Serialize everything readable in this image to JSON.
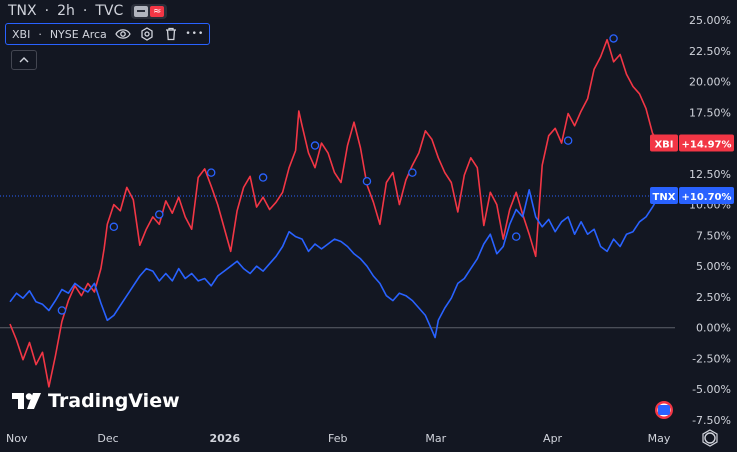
{
  "header": {
    "symbol": "TNX",
    "sep1": "·",
    "interval": "2h",
    "sep2": "·",
    "exchange": "TVC"
  },
  "compare_legend": {
    "symbol": "XBI",
    "sep": "·",
    "exchange": "NYSE Arca",
    "icons": [
      "eye-icon",
      "settings-icon",
      "trash-icon",
      "more-icon"
    ],
    "more_label": "•••"
  },
  "logo_text": "TradingView",
  "colors": {
    "background": "#131722",
    "xbi": "#f23645",
    "tnx": "#2962ff",
    "marker": "#2962ff"
  },
  "chart_data": {
    "type": "line",
    "yunit": "%",
    "ylim": [
      -7.5,
      25
    ],
    "yticks": [
      "25.00%",
      "22.50%",
      "20.00%",
      "17.50%",
      "12.50%",
      "10.00%",
      "7.50%",
      "5.00%",
      "2.50%",
      "0.00%",
      "-2.50%",
      "-5.00%",
      "-7.50%"
    ],
    "x_labels": [
      "Nov",
      "Dec",
      "2026",
      "Feb",
      "Mar",
      "Apr",
      "May"
    ],
    "x_label_pos": [
      0,
      0.151,
      0.331,
      0.505,
      0.656,
      0.836,
      1.0
    ],
    "zero_line": 0,
    "series": [
      {
        "name": "XBI",
        "color": "#f23645",
        "last_label": "+14.97%",
        "last_value": 14.97,
        "points": [
          [
            0,
            0.3
          ],
          [
            0.01,
            -1.0
          ],
          [
            0.02,
            -2.6
          ],
          [
            0.03,
            -1.2
          ],
          [
            0.04,
            -3.0
          ],
          [
            0.05,
            -2.0
          ],
          [
            0.06,
            -4.8
          ],
          [
            0.07,
            -2.3
          ],
          [
            0.08,
            0.5
          ],
          [
            0.09,
            2.2
          ],
          [
            0.1,
            3.4
          ],
          [
            0.11,
            2.6
          ],
          [
            0.12,
            3.6
          ],
          [
            0.13,
            2.9
          ],
          [
            0.14,
            4.8
          ],
          [
            0.145,
            6.4
          ],
          [
            0.15,
            8.4
          ],
          [
            0.16,
            10.0
          ],
          [
            0.17,
            9.5
          ],
          [
            0.18,
            11.4
          ],
          [
            0.19,
            10.4
          ],
          [
            0.2,
            6.7
          ],
          [
            0.21,
            8.0
          ],
          [
            0.22,
            9.0
          ],
          [
            0.23,
            8.4
          ],
          [
            0.24,
            10.3
          ],
          [
            0.25,
            9.3
          ],
          [
            0.26,
            10.6
          ],
          [
            0.27,
            9.0
          ],
          [
            0.28,
            8.0
          ],
          [
            0.29,
            12.2
          ],
          [
            0.3,
            12.9
          ],
          [
            0.31,
            11.5
          ],
          [
            0.32,
            10.0
          ],
          [
            0.33,
            8.1
          ],
          [
            0.34,
            6.2
          ],
          [
            0.35,
            9.5
          ],
          [
            0.36,
            11.4
          ],
          [
            0.37,
            12.3
          ],
          [
            0.38,
            9.8
          ],
          [
            0.39,
            10.6
          ],
          [
            0.4,
            9.6
          ],
          [
            0.41,
            10.2
          ],
          [
            0.42,
            11.0
          ],
          [
            0.43,
            13.0
          ],
          [
            0.44,
            14.4
          ],
          [
            0.445,
            17.6
          ],
          [
            0.45,
            16.4
          ],
          [
            0.46,
            14.2
          ],
          [
            0.47,
            13.0
          ],
          [
            0.48,
            15.0
          ],
          [
            0.49,
            14.2
          ],
          [
            0.5,
            12.6
          ],
          [
            0.51,
            11.8
          ],
          [
            0.52,
            14.8
          ],
          [
            0.53,
            16.7
          ],
          [
            0.54,
            14.6
          ],
          [
            0.55,
            11.6
          ],
          [
            0.56,
            10.2
          ],
          [
            0.57,
            8.4
          ],
          [
            0.58,
            11.8
          ],
          [
            0.59,
            12.6
          ],
          [
            0.6,
            10.0
          ],
          [
            0.61,
            12.0
          ],
          [
            0.62,
            13.2
          ],
          [
            0.63,
            14.2
          ],
          [
            0.64,
            16.0
          ],
          [
            0.65,
            15.3
          ],
          [
            0.66,
            13.8
          ],
          [
            0.67,
            12.6
          ],
          [
            0.68,
            11.8
          ],
          [
            0.69,
            9.4
          ],
          [
            0.7,
            12.4
          ],
          [
            0.71,
            13.8
          ],
          [
            0.72,
            13.0
          ],
          [
            0.73,
            8.3
          ],
          [
            0.74,
            11.0
          ],
          [
            0.75,
            10.0
          ],
          [
            0.76,
            7.2
          ],
          [
            0.77,
            9.6
          ],
          [
            0.78,
            11.0
          ],
          [
            0.79,
            9.2
          ],
          [
            0.8,
            7.6
          ],
          [
            0.81,
            5.8
          ],
          [
            0.82,
            13.2
          ],
          [
            0.83,
            15.6
          ],
          [
            0.84,
            16.2
          ],
          [
            0.85,
            15.0
          ],
          [
            0.86,
            17.4
          ],
          [
            0.87,
            16.4
          ],
          [
            0.88,
            17.6
          ],
          [
            0.89,
            18.6
          ],
          [
            0.9,
            21.0
          ],
          [
            0.91,
            22.0
          ],
          [
            0.92,
            23.4
          ],
          [
            0.93,
            21.6
          ],
          [
            0.94,
            22.2
          ],
          [
            0.95,
            20.6
          ],
          [
            0.96,
            19.6
          ],
          [
            0.97,
            19.0
          ],
          [
            0.98,
            17.8
          ],
          [
            0.99,
            15.8
          ],
          [
            1.0,
            14.97
          ]
        ]
      },
      {
        "name": "TNX",
        "color": "#2962ff",
        "last_label": "+10.70%",
        "last_value": 10.7,
        "points": [
          [
            0,
            2.1
          ],
          [
            0.01,
            2.8
          ],
          [
            0.02,
            2.4
          ],
          [
            0.03,
            3.0
          ],
          [
            0.04,
            2.1
          ],
          [
            0.05,
            1.9
          ],
          [
            0.06,
            1.4
          ],
          [
            0.07,
            2.2
          ],
          [
            0.08,
            3.1
          ],
          [
            0.09,
            2.8
          ],
          [
            0.1,
            3.6
          ],
          [
            0.11,
            3.2
          ],
          [
            0.12,
            2.9
          ],
          [
            0.13,
            3.6
          ],
          [
            0.14,
            2.0
          ],
          [
            0.15,
            0.6
          ],
          [
            0.16,
            1.0
          ],
          [
            0.17,
            1.8
          ],
          [
            0.18,
            2.6
          ],
          [
            0.19,
            3.4
          ],
          [
            0.2,
            4.2
          ],
          [
            0.21,
            4.8
          ],
          [
            0.22,
            4.6
          ],
          [
            0.23,
            3.8
          ],
          [
            0.24,
            4.4
          ],
          [
            0.25,
            3.8
          ],
          [
            0.26,
            4.8
          ],
          [
            0.27,
            4.0
          ],
          [
            0.28,
            4.4
          ],
          [
            0.29,
            3.8
          ],
          [
            0.3,
            4.0
          ],
          [
            0.31,
            3.4
          ],
          [
            0.32,
            4.2
          ],
          [
            0.33,
            4.6
          ],
          [
            0.34,
            5.0
          ],
          [
            0.35,
            5.4
          ],
          [
            0.36,
            4.8
          ],
          [
            0.37,
            4.4
          ],
          [
            0.38,
            5.0
          ],
          [
            0.39,
            4.6
          ],
          [
            0.4,
            5.2
          ],
          [
            0.41,
            5.8
          ],
          [
            0.42,
            6.6
          ],
          [
            0.43,
            7.8
          ],
          [
            0.44,
            7.4
          ],
          [
            0.45,
            7.2
          ],
          [
            0.46,
            6.2
          ],
          [
            0.47,
            6.8
          ],
          [
            0.48,
            6.4
          ],
          [
            0.49,
            6.8
          ],
          [
            0.5,
            7.2
          ],
          [
            0.51,
            7.0
          ],
          [
            0.52,
            6.6
          ],
          [
            0.53,
            6.0
          ],
          [
            0.54,
            5.6
          ],
          [
            0.55,
            5.0
          ],
          [
            0.56,
            4.2
          ],
          [
            0.57,
            3.6
          ],
          [
            0.58,
            2.6
          ],
          [
            0.59,
            2.2
          ],
          [
            0.6,
            2.8
          ],
          [
            0.61,
            2.6
          ],
          [
            0.62,
            2.2
          ],
          [
            0.63,
            1.6
          ],
          [
            0.64,
            1.0
          ],
          [
            0.65,
            -0.2
          ],
          [
            0.655,
            -0.8
          ],
          [
            0.66,
            0.6
          ],
          [
            0.67,
            1.6
          ],
          [
            0.68,
            2.4
          ],
          [
            0.69,
            3.6
          ],
          [
            0.7,
            4.0
          ],
          [
            0.71,
            4.8
          ],
          [
            0.72,
            5.6
          ],
          [
            0.73,
            6.8
          ],
          [
            0.74,
            7.6
          ],
          [
            0.75,
            6.0
          ],
          [
            0.76,
            6.6
          ],
          [
            0.77,
            8.4
          ],
          [
            0.78,
            9.6
          ],
          [
            0.79,
            9.0
          ],
          [
            0.8,
            11.2
          ],
          [
            0.81,
            9.0
          ],
          [
            0.82,
            8.2
          ],
          [
            0.83,
            8.8
          ],
          [
            0.84,
            7.8
          ],
          [
            0.85,
            8.6
          ],
          [
            0.86,
            9.0
          ],
          [
            0.87,
            7.6
          ],
          [
            0.88,
            8.6
          ],
          [
            0.89,
            7.6
          ],
          [
            0.9,
            8.0
          ],
          [
            0.91,
            6.6
          ],
          [
            0.92,
            6.2
          ],
          [
            0.93,
            7.2
          ],
          [
            0.94,
            6.6
          ],
          [
            0.95,
            7.6
          ],
          [
            0.96,
            7.8
          ],
          [
            0.97,
            8.6
          ],
          [
            0.98,
            9.0
          ],
          [
            0.99,
            9.8
          ],
          [
            1.0,
            10.7
          ]
        ]
      }
    ],
    "markers": [
      [
        0.08,
        1.4
      ],
      [
        0.16,
        8.2
      ],
      [
        0.23,
        9.2
      ],
      [
        0.31,
        12.6
      ],
      [
        0.39,
        12.2
      ],
      [
        0.47,
        14.8
      ],
      [
        0.55,
        11.9
      ],
      [
        0.62,
        12.6
      ],
      [
        0.78,
        7.4
      ],
      [
        0.86,
        15.2
      ],
      [
        0.93,
        23.5
      ]
    ],
    "last_dashed_level": 10.7,
    "legend_placement": "right-axis"
  }
}
